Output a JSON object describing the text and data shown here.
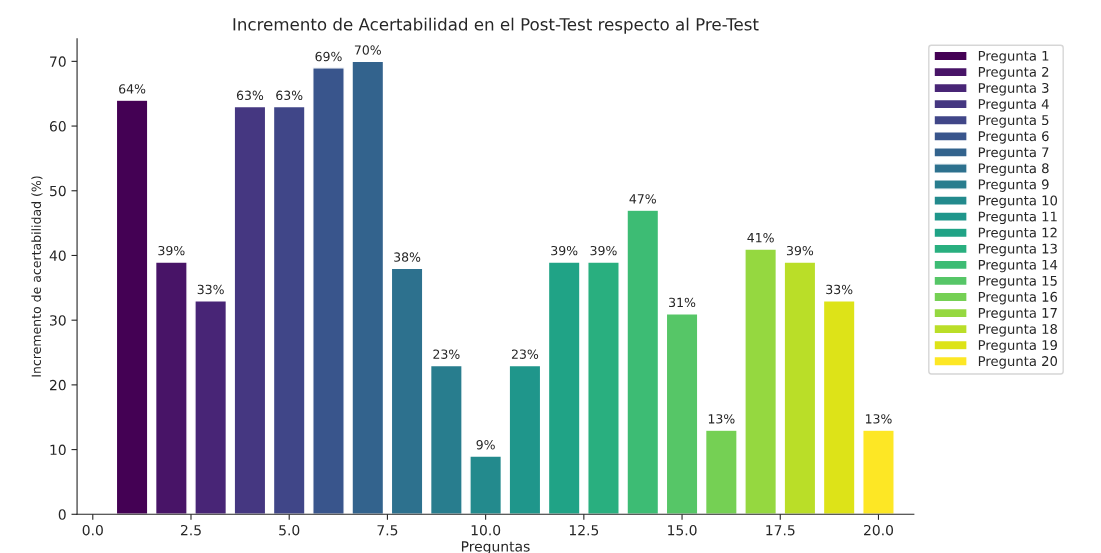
{
  "chart_data": {
    "type": "bar",
    "title": "Incremento de Acertabilidad en el Post-Test respecto al Pre-Test",
    "xlabel": "Preguntas",
    "ylabel": "Incremento de acertabilidad (%)",
    "xlim": [
      -0.4,
      20.9
    ],
    "xticks": [
      {
        "value": 0,
        "label": "0.0"
      },
      {
        "value": 2.5,
        "label": "2.5"
      },
      {
        "value": 5,
        "label": "5.0"
      },
      {
        "value": 7.5,
        "label": "7.5"
      },
      {
        "value": 10,
        "label": "10.0"
      },
      {
        "value": 12.5,
        "label": "12.5"
      },
      {
        "value": 15,
        "label": "15.0"
      },
      {
        "value": 17.5,
        "label": "17.5"
      },
      {
        "value": 20,
        "label": "20.0"
      }
    ],
    "ylim": [
      0,
      73.5
    ],
    "yticks": [
      0,
      10,
      20,
      30,
      40,
      50,
      60,
      70
    ],
    "legend": "top right",
    "grid": false,
    "series": [
      {
        "name": "Pregunta 1",
        "color": "#440154",
        "x": [
          1
        ],
        "values": [
          64
        ],
        "value_labels": [
          "64%"
        ]
      },
      {
        "name": "Pregunta 2",
        "color": "#481467",
        "x": [
          2
        ],
        "values": [
          39
        ],
        "value_labels": [
          "39%"
        ]
      },
      {
        "name": "Pregunta 3",
        "color": "#482576",
        "x": [
          3
        ],
        "values": [
          33
        ],
        "value_labels": [
          "33%"
        ]
      },
      {
        "name": "Pregunta 4",
        "color": "#453781",
        "x": [
          4
        ],
        "values": [
          63
        ],
        "value_labels": [
          "63%"
        ]
      },
      {
        "name": "Pregunta 5",
        "color": "#404688",
        "x": [
          5
        ],
        "values": [
          63
        ],
        "value_labels": [
          "63%"
        ]
      },
      {
        "name": "Pregunta 6",
        "color": "#39558c",
        "x": [
          6
        ],
        "values": [
          69
        ],
        "value_labels": [
          "69%"
        ]
      },
      {
        "name": "Pregunta 7",
        "color": "#33638d",
        "x": [
          7
        ],
        "values": [
          70
        ],
        "value_labels": [
          "70%"
        ]
      },
      {
        "name": "Pregunta 8",
        "color": "#2d718e",
        "x": [
          8
        ],
        "values": [
          38
        ],
        "value_labels": [
          "38%"
        ]
      },
      {
        "name": "Pregunta 9",
        "color": "#287d8e",
        "x": [
          9
        ],
        "values": [
          23
        ],
        "value_labels": [
          "23%"
        ]
      },
      {
        "name": "Pregunta 10",
        "color": "#238a8d",
        "x": [
          10
        ],
        "values": [
          9
        ],
        "value_labels": [
          "9%"
        ]
      },
      {
        "name": "Pregunta 11",
        "color": "#1f968b",
        "x": [
          11
        ],
        "values": [
          23
        ],
        "value_labels": [
          "23%"
        ]
      },
      {
        "name": "Pregunta 12",
        "color": "#20a386",
        "x": [
          12
        ],
        "values": [
          39
        ],
        "value_labels": [
          "39%"
        ]
      },
      {
        "name": "Pregunta 13",
        "color": "#29af7f",
        "x": [
          13
        ],
        "values": [
          39
        ],
        "value_labels": [
          "39%"
        ]
      },
      {
        "name": "Pregunta 14",
        "color": "#3dbc74",
        "x": [
          14
        ],
        "values": [
          47
        ],
        "value_labels": [
          "47%"
        ]
      },
      {
        "name": "Pregunta 15",
        "color": "#56c667",
        "x": [
          15
        ],
        "values": [
          31
        ],
        "value_labels": [
          "31%"
        ]
      },
      {
        "name": "Pregunta 16",
        "color": "#75d054",
        "x": [
          16
        ],
        "values": [
          13
        ],
        "value_labels": [
          "13%"
        ]
      },
      {
        "name": "Pregunta 17",
        "color": "#95d840",
        "x": [
          17
        ],
        "values": [
          41
        ],
        "value_labels": [
          "41%"
        ]
      },
      {
        "name": "Pregunta 18",
        "color": "#bade28",
        "x": [
          18
        ],
        "values": [
          39
        ],
        "value_labels": [
          "39%"
        ]
      },
      {
        "name": "Pregunta 19",
        "color": "#dde318",
        "x": [
          19
        ],
        "values": [
          33
        ],
        "value_labels": [
          "33%"
        ]
      },
      {
        "name": "Pregunta 20",
        "color": "#fde725",
        "x": [
          20
        ],
        "values": [
          13
        ],
        "value_labels": [
          "13%"
        ]
      }
    ]
  }
}
